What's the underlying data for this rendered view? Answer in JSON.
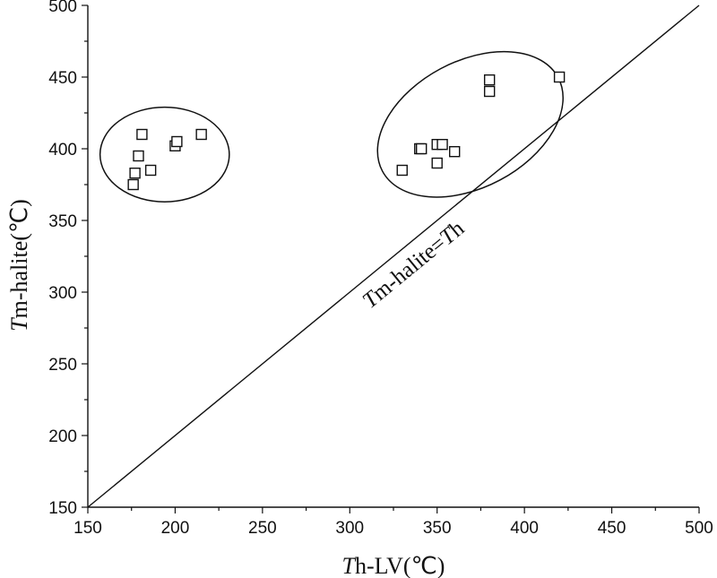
{
  "chart_data": {
    "type": "scatter",
    "xlabel": "Th-LV(℃)",
    "xlabel_parts": {
      "italic": "T",
      "rest": "h-LV(℃)"
    },
    "ylabel": "Tm-halite(℃)",
    "ylabel_parts": {
      "italic": "T",
      "rest": "m-halite(℃)"
    },
    "xlim": [
      150,
      500
    ],
    "ylim": [
      150,
      500
    ],
    "xticks": [
      150,
      200,
      250,
      300,
      350,
      400,
      450,
      500
    ],
    "yticks": [
      150,
      200,
      250,
      300,
      350,
      400,
      450,
      500
    ],
    "grid": false,
    "marker": "open-square",
    "points": [
      {
        "x": 176,
        "y": 375
      },
      {
        "x": 177,
        "y": 383
      },
      {
        "x": 179,
        "y": 395
      },
      {
        "x": 181,
        "y": 410
      },
      {
        "x": 186,
        "y": 385
      },
      {
        "x": 200,
        "y": 402
      },
      {
        "x": 201,
        "y": 405
      },
      {
        "x": 215,
        "y": 410
      },
      {
        "x": 330,
        "y": 385
      },
      {
        "x": 340,
        "y": 400
      },
      {
        "x": 341,
        "y": 400
      },
      {
        "x": 350,
        "y": 390
      },
      {
        "x": 350,
        "y": 403
      },
      {
        "x": 353,
        "y": 403
      },
      {
        "x": 360,
        "y": 398
      },
      {
        "x": 380,
        "y": 440
      },
      {
        "x": 380,
        "y": 448
      },
      {
        "x": 420,
        "y": 450
      }
    ],
    "reference_line": {
      "from": [
        150,
        150
      ],
      "to": [
        500,
        500
      ],
      "label": "Tm-halite=Th",
      "label_parts": [
        {
          "text": "T",
          "italic": true
        },
        {
          "text": "m-halite=",
          "italic": false
        },
        {
          "text": "T",
          "italic": true
        },
        {
          "text": "h",
          "italic": false
        }
      ]
    },
    "group_ellipses": [
      {
        "cx": 194,
        "cy": 396,
        "rx": 37,
        "ry": 33
      },
      {
        "cx": 369,
        "cy": 417,
        "rx": 57,
        "ry": 44,
        "rotate": -28
      }
    ]
  }
}
